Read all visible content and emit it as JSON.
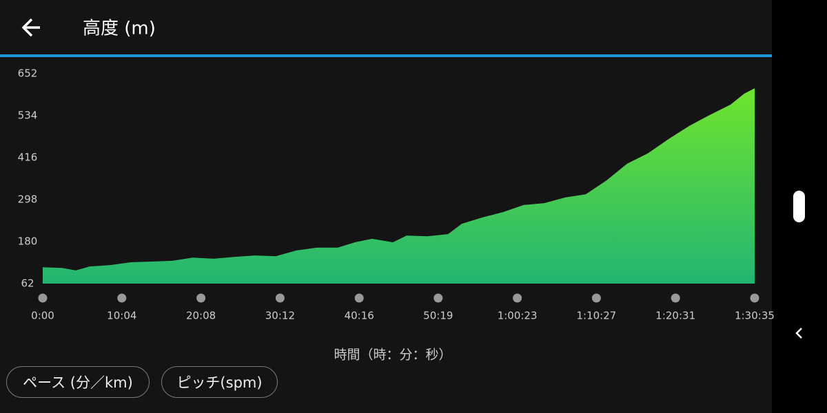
{
  "header": {
    "title": "高度 (m)"
  },
  "chart_data": {
    "type": "area",
    "x_label": "時間（時：分：秒）",
    "x": [
      0,
      147,
      253,
      358,
      516,
      673,
      831,
      989,
      1147,
      1305,
      1463,
      1621,
      1778,
      1936,
      2094,
      2252,
      2383,
      2515,
      2673,
      2778,
      2936,
      3094,
      3199,
      3357,
      3515,
      3672,
      3830,
      3988,
      4146,
      4304,
      4462,
      4620,
      4777,
      4935,
      5093,
      5251,
      5356,
      5435
    ],
    "values": [
      108,
      106,
      99,
      110,
      114,
      122,
      124,
      126,
      135,
      132,
      137,
      141,
      139,
      155,
      163,
      163,
      178,
      188,
      178,
      197,
      195,
      201,
      230,
      248,
      263,
      283,
      288,
      304,
      313,
      352,
      399,
      428,
      468,
      505,
      536,
      565,
      596,
      611
    ],
    "xlim": [
      0,
      5435
    ],
    "ylim": [
      62,
      652
    ],
    "yticks": [
      62,
      180,
      298,
      416,
      534,
      652
    ],
    "xticks": [
      {
        "value": 0,
        "label": "0:00"
      },
      {
        "value": 604,
        "label": "10:04"
      },
      {
        "value": 1208,
        "label": "20:08"
      },
      {
        "value": 1812,
        "label": "30:12"
      },
      {
        "value": 2416,
        "label": "40:16"
      },
      {
        "value": 3019,
        "label": "50:19"
      },
      {
        "value": 3623,
        "label": "1:00:23"
      },
      {
        "value": 4227,
        "label": "1:10:27"
      },
      {
        "value": 4831,
        "label": "1:20:31"
      },
      {
        "value": 5435,
        "label": "1:30:35"
      }
    ],
    "color_top": "#6fe52c",
    "color_bottom": "#22b573"
  },
  "buttons": [
    "ペース (分／km)",
    "ピッチ(spm)"
  ]
}
